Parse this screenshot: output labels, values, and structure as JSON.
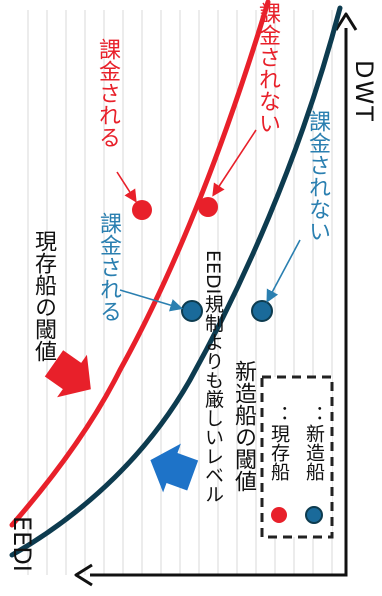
{
  "axes": {
    "x_label": "DWT",
    "y_label": "EEDI"
  },
  "existing_threshold": {
    "label": "現存船の閾値",
    "color": "#e8202a"
  },
  "new_threshold": {
    "label": "新造船の閾値",
    "sublabel": "EEDI規制よりも厳しいレベル",
    "color": "#0d3b4f"
  },
  "annotations": {
    "red_charged": "課金される",
    "red_not_charged": "課金されない",
    "blue_charged": "課金される",
    "blue_not_charged": "課金されない"
  },
  "legend": {
    "items": [
      {
        "label": "：現存船",
        "color": "#e8202a"
      },
      {
        "label": "：新造船",
        "color": "#1a6a9a"
      }
    ]
  },
  "colors": {
    "red_text": "#e8202a",
    "blue_text": "#2a7fb0",
    "arrow_red": "#e8202a",
    "arrow_blue": "#1e73c8"
  }
}
